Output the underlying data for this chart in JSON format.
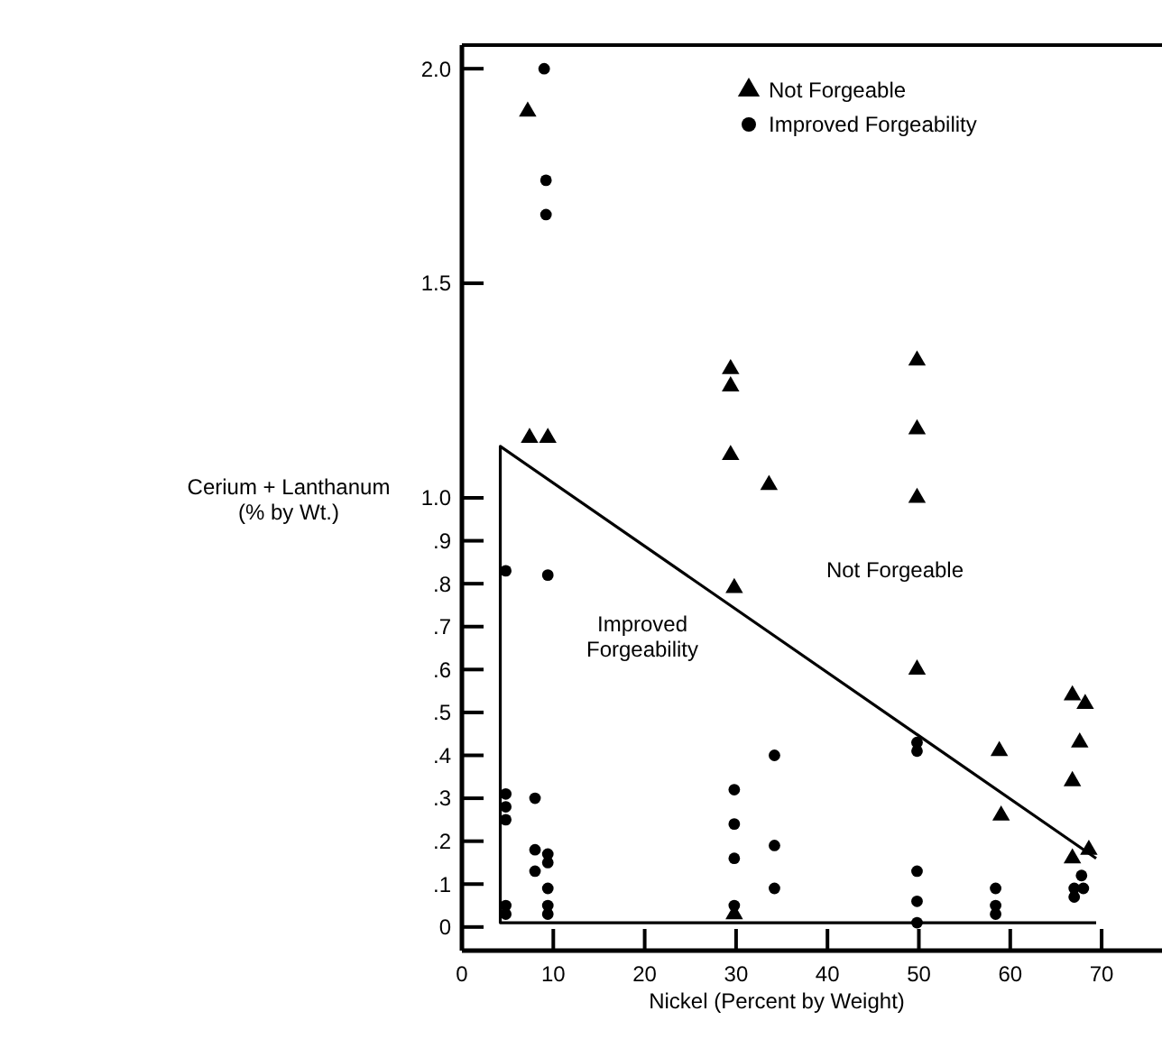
{
  "chart_data": {
    "type": "scatter",
    "xlabel": "Nickel (Percent by Weight)",
    "ylabel": "Cerium + Lanthanum (% by Wt.)",
    "xlim": [
      0,
      77
    ],
    "xticks": [
      0,
      10,
      20,
      30,
      40,
      50,
      60,
      70
    ],
    "ylim": [
      -0.055,
      2.055
    ],
    "yticks": [
      {
        "value": 0,
        "label": "0"
      },
      {
        "value": 0.1,
        "label": ".1"
      },
      {
        "value": 0.2,
        "label": ".2"
      },
      {
        "value": 0.3,
        "label": ".3"
      },
      {
        "value": 0.4,
        "label": ".4"
      },
      {
        "value": 0.5,
        "label": ".5"
      },
      {
        "value": 0.6,
        "label": ".6"
      },
      {
        "value": 0.7,
        "label": ".7"
      },
      {
        "value": 0.8,
        "label": ".8"
      },
      {
        "value": 0.9,
        "label": ".9"
      },
      {
        "value": 1,
        "label": "1.0"
      },
      {
        "value": 1.5,
        "label": "1.5"
      },
      {
        "value": 2,
        "label": "2.0"
      }
    ],
    "grid": false,
    "legend": "top right",
    "series": [
      {
        "name": "Not Forgeable",
        "color": "#000000",
        "marker": "triangle",
        "x": [
          7.2,
          7.4,
          9.4,
          29.4,
          29.4,
          29.4,
          33.6,
          29.8,
          49.8,
          49.8,
          49.8,
          49.8,
          66.8,
          68.2,
          58.8,
          67.6,
          66.8,
          59,
          66.8,
          68.6,
          29.8
        ],
        "values": [
          1.9,
          1.14,
          1.14,
          1.3,
          1.26,
          1.1,
          1.03,
          0.79,
          1.32,
          1.16,
          1,
          0.6,
          0.54,
          0.52,
          0.41,
          0.43,
          0.34,
          0.26,
          0.16,
          0.18,
          0.03
        ]
      },
      {
        "name": "Improved Forgeability",
        "color": "#000000",
        "marker": "circle",
        "x": [
          9,
          9.2,
          9.2,
          4.8,
          9.4,
          4.8,
          4.8,
          4.8,
          8,
          8,
          8,
          9.4,
          9.4,
          9.4,
          9.4,
          9.4,
          4.8,
          4.8,
          29.8,
          29.8,
          29.8,
          29.8,
          34.2,
          34.2,
          34.2,
          49.8,
          49.8,
          49.8,
          49.8,
          49.8,
          58.4,
          58.4,
          58.4,
          67.8,
          67,
          68,
          67
        ],
        "values": [
          2,
          1.74,
          1.66,
          0.83,
          0.82,
          0.31,
          0.28,
          0.25,
          0.3,
          0.18,
          0.13,
          0.17,
          0.15,
          0.09,
          0.05,
          0.03,
          0.05,
          0.03,
          0.32,
          0.24,
          0.16,
          0.05,
          0.4,
          0.19,
          0.09,
          0.43,
          0.41,
          0.13,
          0.06,
          0.01,
          0.09,
          0.05,
          0.03,
          0.12,
          0.09,
          0.09,
          0.07
        ]
      },
      {
        "type": "line",
        "color": "#000000",
        "marker": "none",
        "x": [
          69.4,
          4.2,
          4.2,
          69.4
        ],
        "values": [
          0.16,
          1.12,
          0.01,
          0.01
        ]
      }
    ],
    "annotations": [
      "Not Forgeable",
      "Improved Forgeability"
    ]
  }
}
